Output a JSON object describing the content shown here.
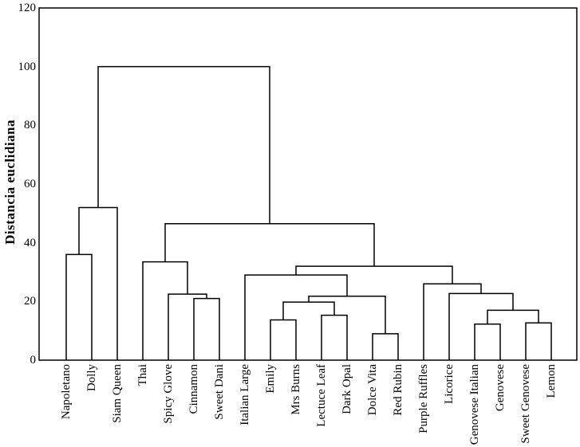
{
  "chart_data": {
    "type": "dendrogram",
    "ylabel": "Distancia euclidiana",
    "ylim": [
      0,
      120
    ],
    "yticks": [
      0,
      20,
      40,
      60,
      80,
      100,
      120
    ],
    "grid": false,
    "line_color": "#000000",
    "background": "#ffffff",
    "leaves": [
      "Napoletano",
      "Dolly",
      "Siam Queen",
      "Thai",
      "Spicy Glove",
      "Cinnamon",
      "Sweet Dani",
      "Italian Large",
      "Emily",
      "Mrs Burns",
      "Lectuce Leaf",
      "Dark Opal",
      "Dolce Vita",
      "Red Rubin",
      "Purple Ruffles",
      "Licorice",
      "Genovese Italian",
      "Genovese",
      "Sweet Genovese",
      "Lemon"
    ],
    "merges": [
      {
        "a": 0,
        "b": 1,
        "height": 36
      },
      {
        "a": 20,
        "b": 2,
        "height": 52
      },
      {
        "a": 5,
        "b": 6,
        "height": 21
      },
      {
        "a": 4,
        "b": 22,
        "height": 22.5
      },
      {
        "a": 3,
        "b": 23,
        "height": 33.5
      },
      {
        "a": 8,
        "b": 9,
        "height": 13.7
      },
      {
        "a": 10,
        "b": 11,
        "height": 15.3
      },
      {
        "a": 25,
        "b": 26,
        "height": 19.8
      },
      {
        "a": 12,
        "b": 13,
        "height": 9
      },
      {
        "a": 27,
        "b": 28,
        "height": 21.8
      },
      {
        "a": 7,
        "b": 29,
        "height": 29
      },
      {
        "a": 16,
        "b": 17,
        "height": 12.3
      },
      {
        "a": 18,
        "b": 19,
        "height": 12.7
      },
      {
        "a": 31,
        "b": 32,
        "height": 17
      },
      {
        "a": 15,
        "b": 33,
        "height": 22.7
      },
      {
        "a": 14,
        "b": 34,
        "height": 26
      },
      {
        "a": 30,
        "b": 35,
        "height": 32
      },
      {
        "a": 24,
        "b": 36,
        "height": 46.5
      },
      {
        "a": 21,
        "b": 37,
        "height": 100
      }
    ]
  }
}
